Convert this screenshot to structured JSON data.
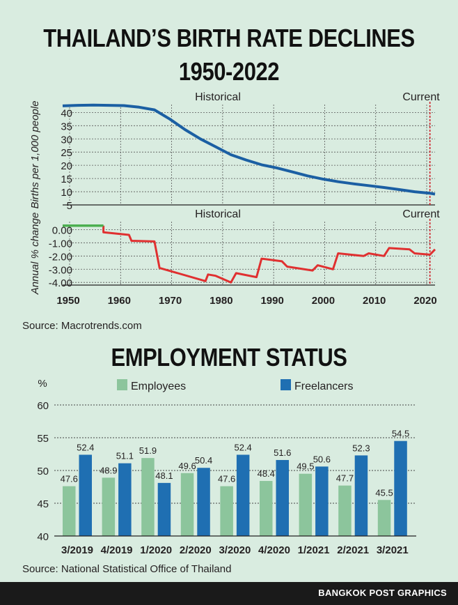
{
  "header": {
    "title_line1": "THAILAND’S BIRTH RATE DECLINES",
    "title_line2": "1950-2022"
  },
  "labels": {
    "historical": "Historical",
    "current": "Current"
  },
  "source1": "Source: Macrotrends.com",
  "employment_title": "EMPLOYMENT STATUS",
  "source2": "Source: National Statistical Office of Thailand",
  "footer": "BANGKOK POST GRAPHICS",
  "colors": {
    "birth_line": "#1b5fa3",
    "change_line": "#e03030",
    "change_positive": "#4caf50",
    "current_marker": "#d0202a",
    "employees": "#8cc59c",
    "freelancers": "#1f6fb2"
  },
  "chart_data": [
    {
      "type": "line",
      "ylabel": "Births per 1,000 people",
      "xlim": [
        1950,
        2023
      ],
      "ylim": [
        5,
        43
      ],
      "yticks": [
        5,
        10,
        15,
        20,
        25,
        30,
        35,
        40
      ],
      "xticks": [
        1950,
        1960,
        1970,
        1980,
        1990,
        2000,
        2010,
        2020
      ],
      "current_year": 2022,
      "grid": true,
      "series": [
        {
          "x": [
            1950,
            1953,
            1956,
            1959,
            1962,
            1965,
            1968,
            1971,
            1974,
            1977,
            1980,
            1983,
            1986,
            1989,
            1992,
            1995,
            1998,
            2001,
            2004,
            2007,
            2010,
            2013,
            2016,
            2019,
            2022,
            2023
          ],
          "values": [
            42.5,
            42.7,
            42.8,
            42.7,
            42.6,
            42.0,
            41.0,
            37.5,
            33.5,
            30.0,
            27.0,
            24.0,
            22.0,
            20.2,
            19.0,
            17.5,
            16.0,
            14.8,
            13.8,
            13.0,
            12.3,
            11.6,
            10.8,
            10.0,
            9.4,
            9.1
          ]
        }
      ]
    },
    {
      "type": "line",
      "ylabel": "Annual % change",
      "xlim": [
        1950,
        2023
      ],
      "ylim": [
        -4.2,
        0.6
      ],
      "yticks": [
        0.0,
        -1.0,
        -2.0,
        -3.0,
        -4.0
      ],
      "ytick_labels": [
        "0.00",
        "-1.00",
        "-2.00",
        "-3.00",
        "-4.00"
      ],
      "current_year": 2022,
      "grid": true,
      "series": [
        {
          "x": [
            1950,
            1958,
            1958,
            1963,
            1963.5,
            1968,
            1969,
            1978,
            1978.5,
            1980,
            1983,
            1984,
            1988,
            1989,
            1993,
            1994,
            1999,
            2000,
            2003,
            2004,
            2009,
            2010,
            2013,
            2014,
            2018,
            2019,
            2022,
            2022.5,
            2023
          ],
          "values": [
            0.3,
            0.3,
            -0.2,
            -0.4,
            -0.85,
            -0.9,
            -2.9,
            -3.9,
            -3.4,
            -3.5,
            -4.0,
            -3.3,
            -3.6,
            -2.2,
            -2.4,
            -2.8,
            -3.1,
            -2.7,
            -3.0,
            -1.8,
            -2.0,
            -1.8,
            -2.0,
            -1.4,
            -1.5,
            -1.8,
            -1.9,
            -1.7,
            -1.5
          ]
        }
      ]
    },
    {
      "type": "bar",
      "ylabel": "%",
      "ylim": [
        40,
        60
      ],
      "yticks": [
        40,
        45,
        50,
        55,
        60
      ],
      "categories": [
        "3/2019",
        "4/2019",
        "1/2020",
        "2/2020",
        "3/2020",
        "4/2020",
        "1/2021",
        "2/2021",
        "3/2021"
      ],
      "legend_position": "top",
      "series": [
        {
          "name": "Employees",
          "values": [
            47.6,
            48.9,
            51.9,
            49.6,
            47.6,
            48.4,
            49.5,
            47.7,
            45.5
          ]
        },
        {
          "name": "Freelancers",
          "values": [
            52.4,
            51.1,
            48.1,
            50.4,
            52.4,
            51.6,
            50.6,
            52.3,
            54.5
          ]
        }
      ]
    }
  ]
}
